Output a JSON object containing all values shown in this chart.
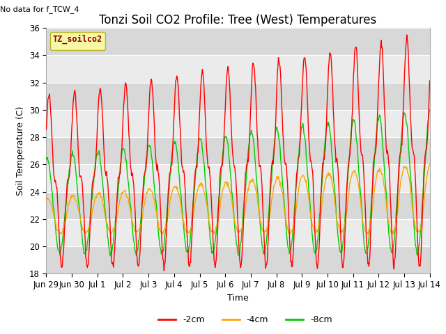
{
  "title": "Tonzi Soil CO2 Profile: Tree (West) Temperatures",
  "ylabel": "Soil Temperature (C)",
  "xlabel": "Time",
  "no_data_label": "No data for f_TCW_4",
  "legend_box_label": "TZ_soilco2",
  "ylim": [
    18,
    36
  ],
  "yticks": [
    18,
    20,
    22,
    24,
    26,
    28,
    30,
    32,
    34,
    36
  ],
  "line_2cm_color": "#ff0000",
  "line_4cm_color": "#ffa500",
  "line_8cm_color": "#00cc00",
  "legend_entries": [
    "-2cm",
    "-4cm",
    "-8cm"
  ],
  "background_color": "#ffffff",
  "plot_bg_color": "#ebebeb",
  "hband_color": "#d8d8d8",
  "title_fontsize": 12,
  "label_fontsize": 9,
  "tick_fontsize": 8.5
}
